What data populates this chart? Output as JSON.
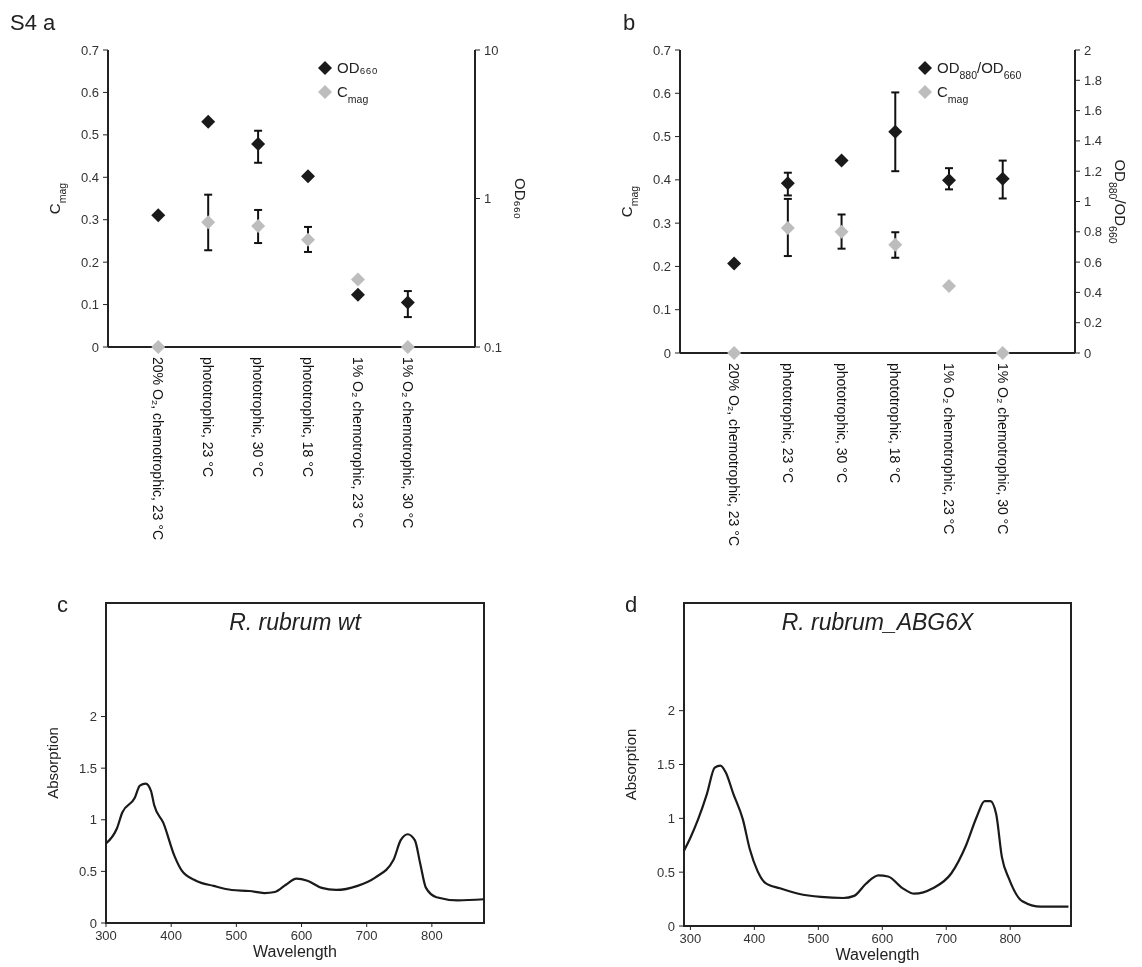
{
  "chart_data": [
    {
      "type": "scatter",
      "annotations": [
        "S4 a"
      ],
      "ylabel": "C$_{mag}$",
      "y2label": "OD₆₆₀",
      "categories": [
        "20% O₂, chemotrophic, 23 °C",
        "phototrophic, 23 °C",
        "phototrophic, 30 °C",
        "phototrophic, 18 °C",
        "1% O₂ chemotrophic, 23 °C",
        "1% O₂ chemotrophic, 30 °C"
      ],
      "ylim": [
        0,
        0.7
      ],
      "yticks": [
        0,
        0.1,
        0.2,
        0.3,
        0.4,
        0.5,
        0.6,
        0.7
      ],
      "y2lim": [
        0.1,
        10
      ],
      "y2ticks": [
        0.1,
        1,
        10
      ],
      "log": "y2",
      "marker": "diamond",
      "legend": "top right",
      "series": [
        {
          "name": "OD₆₆₀",
          "color": "#1a1a1a",
          "axis": "y2",
          "values": [
            0.77,
            3.29,
            2.33,
            1.41,
            0.225,
            0.199
          ],
          "errors": [
            null,
            null,
            [
              1.74,
              2.86
            ],
            null,
            null,
            [
              0.159,
              0.238
            ]
          ]
        },
        {
          "name": "C$_{mag}$",
          "color": "#bdbdbd",
          "values": [
            0,
            0.294,
            0.285,
            0.253,
            0.159,
            0
          ],
          "errors": [
            null,
            [
              0.228,
              0.359
            ],
            [
              0.245,
              0.323
            ],
            [
              0.224,
              0.283
            ],
            null,
            null
          ]
        }
      ]
    },
    {
      "type": "scatter",
      "annotations": [
        "b"
      ],
      "ylabel": "C$_{mag}$",
      "y2label": "OD$_{880}$/OD$_{660}$",
      "categories": [
        "20% O₂, chemotrophic, 23 °C",
        "phototrophic, 23 °C",
        "phototrophic, 30 °C",
        "phototrophic, 18 °C",
        "1% O₂ chemotrophic, 23 °C",
        "1% O₂ chemotrophic, 30 °C"
      ],
      "ylim": [
        0,
        0.7
      ],
      "yticks": [
        0,
        0.1,
        0.2,
        0.3,
        0.4,
        0.5,
        0.6,
        0.7
      ],
      "y2lim": [
        0,
        2
      ],
      "y2ticks": [
        0,
        0.2,
        0.4,
        0.6,
        0.8,
        1,
        1.2,
        1.4,
        1.6,
        1.8,
        2
      ],
      "marker": "diamond",
      "legend": "top right",
      "series": [
        {
          "name": "OD$_{880}$/OD$_{660}$",
          "color": "#1a1a1a",
          "axis": "y2",
          "values": [
            0.59,
            1.12,
            1.27,
            1.46,
            1.14,
            1.15
          ],
          "errors": [
            null,
            [
              1.04,
              1.19
            ],
            null,
            [
              1.2,
              1.72
            ],
            [
              1.08,
              1.22
            ],
            [
              1.02,
              1.27
            ]
          ]
        },
        {
          "name": "C$_{mag}$",
          "color": "#bdbdbd",
          "values": [
            0,
            0.289,
            0.28,
            0.25,
            0.155,
            0
          ],
          "errors": [
            null,
            [
              0.224,
              0.356
            ],
            [
              0.241,
              0.32
            ],
            [
              0.22,
              0.279
            ],
            null,
            null
          ]
        }
      ]
    },
    {
      "type": "line",
      "annotations": [
        "c"
      ],
      "title": "R. rubrum wt",
      "xlabel": "Wavelength",
      "ylabel": "Absorption",
      "xlim": [
        300,
        880
      ],
      "xticks": [
        300,
        400,
        500,
        600,
        700,
        800
      ],
      "ylim": [
        0,
        3.1
      ],
      "yticks": [
        0,
        0.5,
        1,
        1.5,
        2
      ],
      "series": [
        {
          "color": "#1a1a1a",
          "x": [
            300,
            317,
            325,
            344,
            352,
            361,
            369,
            374,
            388,
            405,
            416,
            438,
            465,
            493,
            520,
            543,
            559,
            576,
            592,
            609,
            631,
            653,
            686,
            713,
            741,
            752,
            763,
            774,
            782,
            791,
            807,
            840,
            880
          ],
          "values": [
            0.77,
            0.92,
            1.07,
            1.21,
            1.33,
            1.35,
            1.28,
            1.14,
            0.97,
            0.65,
            0.51,
            0.41,
            0.36,
            0.32,
            0.31,
            0.29,
            0.3,
            0.37,
            0.43,
            0.41,
            0.34,
            0.32,
            0.36,
            0.44,
            0.61,
            0.8,
            0.86,
            0.8,
            0.58,
            0.34,
            0.25,
            0.22,
            0.23
          ]
        }
      ]
    },
    {
      "type": "line",
      "annotations": [
        "d"
      ],
      "title": "R. rubrum_ABG6X",
      "xlabel": "Wavelength",
      "ylabel": "Absorption",
      "xlim": [
        290,
        895
      ],
      "xticks": [
        300,
        400,
        500,
        600,
        700,
        800
      ],
      "ylim": [
        0,
        3
      ],
      "yticks": [
        0,
        0.5,
        1,
        1.5,
        2
      ],
      "series": [
        {
          "color": "#1a1a1a",
          "x": [
            290,
            300,
            312,
            326,
            338,
            347,
            355,
            367,
            382,
            393,
            405,
            417,
            440,
            469,
            504,
            539,
            556,
            574,
            594,
            609,
            632,
            650,
            679,
            708,
            731,
            748,
            760,
            769,
            778,
            787,
            798,
            819,
            848,
            891
          ],
          "values": [
            0.7,
            0.82,
            0.99,
            1.23,
            1.47,
            1.49,
            1.43,
            1.23,
            0.99,
            0.71,
            0.51,
            0.4,
            0.35,
            0.3,
            0.27,
            0.26,
            0.28,
            0.39,
            0.47,
            0.46,
            0.35,
            0.3,
            0.35,
            0.49,
            0.75,
            1.02,
            1.16,
            1.16,
            1.04,
            0.64,
            0.44,
            0.23,
            0.18,
            0.18
          ]
        }
      ]
    }
  ]
}
